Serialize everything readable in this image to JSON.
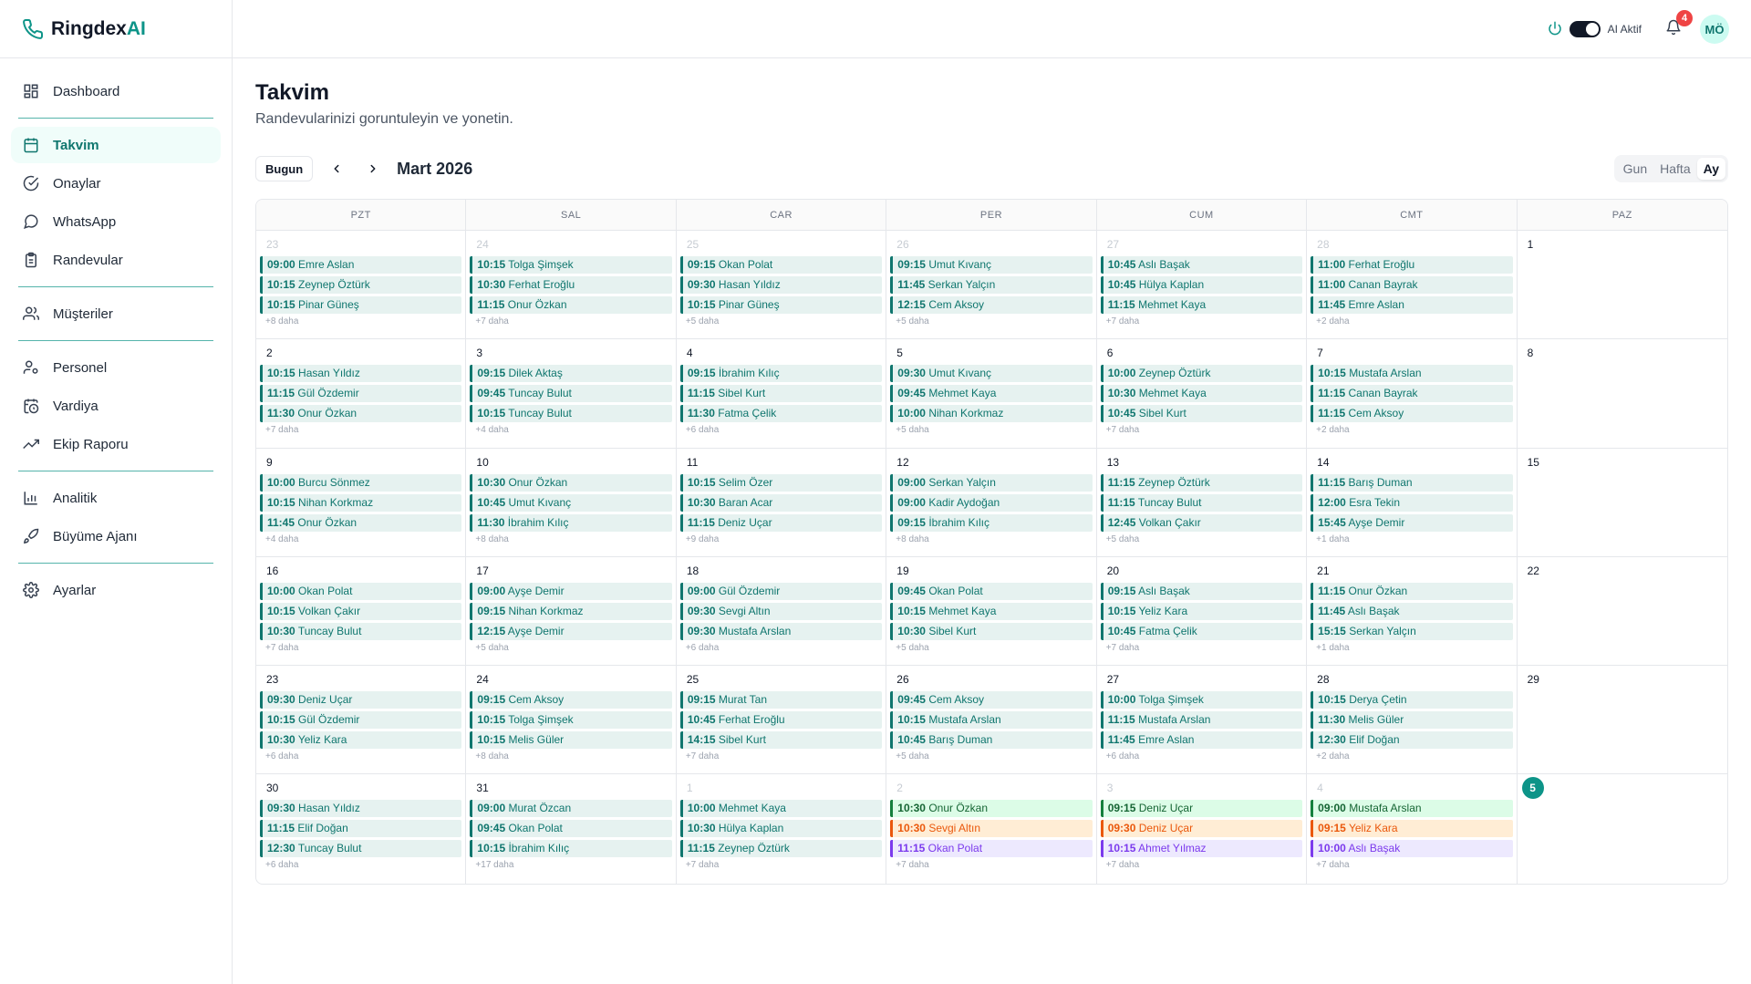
{
  "brand": {
    "name": "Ringdex",
    "accent": "AI"
  },
  "sidebar": {
    "items": [
      {
        "label": "Dashboard",
        "icon": "dashboard-icon",
        "active": false
      },
      {
        "sep": true
      },
      {
        "label": "Takvim",
        "icon": "calendar-icon",
        "active": true
      },
      {
        "label": "Onaylar",
        "icon": "check-circle-icon",
        "active": false
      },
      {
        "label": "WhatsApp",
        "icon": "message-icon",
        "active": false
      },
      {
        "label": "Randevular",
        "icon": "clipboard-icon",
        "active": false
      },
      {
        "sep": true
      },
      {
        "label": "Müşteriler",
        "icon": "users-icon",
        "active": false
      },
      {
        "sep": true
      },
      {
        "label": "Personel",
        "icon": "user-cog-icon",
        "active": false
      },
      {
        "label": "Vardiya",
        "icon": "calendar-clock-icon",
        "active": false
      },
      {
        "label": "Ekip Raporu",
        "icon": "trending-up-icon",
        "active": false
      },
      {
        "sep": true
      },
      {
        "label": "Analitik",
        "icon": "bar-chart-icon",
        "active": false
      },
      {
        "label": "Büyüme Ajanı",
        "icon": "rocket-icon",
        "active": false
      },
      {
        "sep": true
      },
      {
        "label": "Ayarlar",
        "icon": "gear-icon",
        "active": false
      }
    ]
  },
  "topbar": {
    "ai_label": "AI Aktif",
    "notifications": "4",
    "avatar": "MÖ"
  },
  "page": {
    "title": "Takvim",
    "subtitle": "Randevularinizi goruntuleyin ve yonetin."
  },
  "toolbar": {
    "today": "Bugun",
    "month": "Mart 2026",
    "views": [
      "Gun",
      "Hafta",
      "Ay"
    ],
    "active_view": "Ay"
  },
  "weekdays": [
    "PZT",
    "SAL",
    "CAR",
    "PER",
    "CUM",
    "CMT",
    "PAZ"
  ],
  "colors": {
    "accent": "#0d9488",
    "event_bg": "#e6f2f0",
    "event_text": "#0f766e"
  },
  "days": [
    {
      "d": "23",
      "muted": true,
      "ev": [
        [
          "09:00",
          "Emre Aslan"
        ],
        [
          "10:15",
          "Zeynep Öztürk"
        ],
        [
          "10:15",
          "Pinar Güneş"
        ]
      ],
      "more": "+8 daha"
    },
    {
      "d": "24",
      "muted": true,
      "ev": [
        [
          "10:15",
          "Tolga Şimşek"
        ],
        [
          "10:30",
          "Ferhat Eroğlu"
        ],
        [
          "11:15",
          "Onur Özkan"
        ]
      ],
      "more": "+7 daha"
    },
    {
      "d": "25",
      "muted": true,
      "ev": [
        [
          "09:15",
          "Okan Polat"
        ],
        [
          "09:30",
          "Hasan Yıldız"
        ],
        [
          "10:15",
          "Pinar Güneş"
        ]
      ],
      "more": "+5 daha"
    },
    {
      "d": "26",
      "muted": true,
      "ev": [
        [
          "09:15",
          "Umut Kıvanç"
        ],
        [
          "11:45",
          "Serkan Yalçın"
        ],
        [
          "12:15",
          "Cem Aksoy"
        ]
      ],
      "more": "+5 daha"
    },
    {
      "d": "27",
      "muted": true,
      "ev": [
        [
          "10:45",
          "Aslı Başak"
        ],
        [
          "10:45",
          "Hülya Kaplan"
        ],
        [
          "11:15",
          "Mehmet Kaya"
        ]
      ],
      "more": "+7 daha"
    },
    {
      "d": "28",
      "muted": true,
      "ev": [
        [
          "11:00",
          "Ferhat Eroğlu"
        ],
        [
          "11:00",
          "Canan Bayrak"
        ],
        [
          "11:45",
          "Emre Aslan"
        ]
      ],
      "more": "+2 daha"
    },
    {
      "d": "1",
      "muted": false,
      "ev": [],
      "more": ""
    },
    {
      "d": "2",
      "ev": [
        [
          "10:15",
          "Hasan Yıldız"
        ],
        [
          "11:15",
          "Gül Özdemir"
        ],
        [
          "11:30",
          "Onur Özkan"
        ]
      ],
      "more": "+7 daha"
    },
    {
      "d": "3",
      "ev": [
        [
          "09:15",
          "Dilek Aktaş"
        ],
        [
          "09:45",
          "Tuncay Bulut"
        ],
        [
          "10:15",
          "Tuncay Bulut"
        ]
      ],
      "more": "+4 daha"
    },
    {
      "d": "4",
      "ev": [
        [
          "09:15",
          "İbrahim Kılıç"
        ],
        [
          "11:15",
          "Sibel Kurt"
        ],
        [
          "11:30",
          "Fatma Çelik"
        ]
      ],
      "more": "+6 daha"
    },
    {
      "d": "5",
      "ev": [
        [
          "09:30",
          "Umut Kıvanç"
        ],
        [
          "09:45",
          "Mehmet Kaya"
        ],
        [
          "10:00",
          "Nihan Korkmaz"
        ]
      ],
      "more": "+5 daha"
    },
    {
      "d": "6",
      "ev": [
        [
          "10:00",
          "Zeynep Öztürk"
        ],
        [
          "10:30",
          "Mehmet Kaya"
        ],
        [
          "10:45",
          "Sibel Kurt"
        ]
      ],
      "more": "+7 daha"
    },
    {
      "d": "7",
      "ev": [
        [
          "10:15",
          "Mustafa Arslan"
        ],
        [
          "11:15",
          "Canan Bayrak"
        ],
        [
          "11:15",
          "Cem Aksoy"
        ]
      ],
      "more": "+2 daha"
    },
    {
      "d": "8",
      "ev": [],
      "more": ""
    },
    {
      "d": "9",
      "ev": [
        [
          "10:00",
          "Burcu Sönmez"
        ],
        [
          "10:15",
          "Nihan Korkmaz"
        ],
        [
          "11:45",
          "Onur Özkan"
        ]
      ],
      "more": "+4 daha"
    },
    {
      "d": "10",
      "ev": [
        [
          "10:30",
          "Onur Özkan"
        ],
        [
          "10:45",
          "Umut Kıvanç"
        ],
        [
          "11:30",
          "İbrahim Kılıç"
        ]
      ],
      "more": "+8 daha"
    },
    {
      "d": "11",
      "ev": [
        [
          "10:15",
          "Selim Özer"
        ],
        [
          "10:30",
          "Baran Acar"
        ],
        [
          "11:15",
          "Deniz Uçar"
        ]
      ],
      "more": "+9 daha"
    },
    {
      "d": "12",
      "ev": [
        [
          "09:00",
          "Serkan Yalçın"
        ],
        [
          "09:00",
          "Kadir Aydoğan"
        ],
        [
          "09:15",
          "İbrahim Kılıç"
        ]
      ],
      "more": "+8 daha"
    },
    {
      "d": "13",
      "ev": [
        [
          "11:15",
          "Zeynep Öztürk"
        ],
        [
          "11:15",
          "Tuncay Bulut"
        ],
        [
          "12:45",
          "Volkan Çakır"
        ]
      ],
      "more": "+5 daha"
    },
    {
      "d": "14",
      "ev": [
        [
          "11:15",
          "Barış Duman"
        ],
        [
          "12:00",
          "Esra Tekin"
        ],
        [
          "15:45",
          "Ayşe Demir"
        ]
      ],
      "more": "+1 daha"
    },
    {
      "d": "15",
      "ev": [],
      "more": ""
    },
    {
      "d": "16",
      "ev": [
        [
          "10:00",
          "Okan Polat"
        ],
        [
          "10:15",
          "Volkan Çakır"
        ],
        [
          "10:30",
          "Tuncay Bulut"
        ]
      ],
      "more": "+7 daha"
    },
    {
      "d": "17",
      "ev": [
        [
          "09:00",
          "Ayşe Demir"
        ],
        [
          "09:15",
          "Nihan Korkmaz"
        ],
        [
          "12:15",
          "Ayşe Demir"
        ]
      ],
      "more": "+5 daha"
    },
    {
      "d": "18",
      "ev": [
        [
          "09:00",
          "Gül Özdemir"
        ],
        [
          "09:30",
          "Sevgi Altın"
        ],
        [
          "09:30",
          "Mustafa Arslan"
        ]
      ],
      "more": "+6 daha"
    },
    {
      "d": "19",
      "ev": [
        [
          "09:45",
          "Okan Polat"
        ],
        [
          "10:15",
          "Mehmet Kaya"
        ],
        [
          "10:30",
          "Sibel Kurt"
        ]
      ],
      "more": "+5 daha"
    },
    {
      "d": "20",
      "ev": [
        [
          "09:15",
          "Aslı Başak"
        ],
        [
          "10:15",
          "Yeliz Kara"
        ],
        [
          "10:45",
          "Fatma Çelik"
        ]
      ],
      "more": "+7 daha"
    },
    {
      "d": "21",
      "ev": [
        [
          "11:15",
          "Onur Özkan"
        ],
        [
          "11:45",
          "Aslı Başak"
        ],
        [
          "15:15",
          "Serkan Yalçın"
        ]
      ],
      "more": "+1 daha"
    },
    {
      "d": "22",
      "ev": [],
      "more": ""
    },
    {
      "d": "23",
      "ev": [
        [
          "09:30",
          "Deniz Uçar"
        ],
        [
          "10:15",
          "Gül Özdemir"
        ],
        [
          "10:30",
          "Yeliz Kara"
        ]
      ],
      "more": "+6 daha"
    },
    {
      "d": "24",
      "ev": [
        [
          "09:15",
          "Cem Aksoy"
        ],
        [
          "10:15",
          "Tolga Şimşek"
        ],
        [
          "10:15",
          "Melis Güler"
        ]
      ],
      "more": "+8 daha"
    },
    {
      "d": "25",
      "ev": [
        [
          "09:15",
          "Murat Tan"
        ],
        [
          "10:45",
          "Ferhat Eroğlu"
        ],
        [
          "14:15",
          "Sibel Kurt"
        ]
      ],
      "more": "+7 daha"
    },
    {
      "d": "26",
      "ev": [
        [
          "09:45",
          "Cem Aksoy"
        ],
        [
          "10:15",
          "Mustafa Arslan"
        ],
        [
          "10:45",
          "Barış Duman"
        ]
      ],
      "more": "+5 daha"
    },
    {
      "d": "27",
      "ev": [
        [
          "10:00",
          "Tolga Şimşek"
        ],
        [
          "11:15",
          "Mustafa Arslan"
        ],
        [
          "11:45",
          "Emre Aslan"
        ]
      ],
      "more": "+6 daha"
    },
    {
      "d": "28",
      "ev": [
        [
          "10:15",
          "Derya Çetin"
        ],
        [
          "11:30",
          "Melis Güler"
        ],
        [
          "12:30",
          "Elif Doğan"
        ]
      ],
      "more": "+2 daha"
    },
    {
      "d": "29",
      "ev": [],
      "more": ""
    },
    {
      "d": "30",
      "ev": [
        [
          "09:30",
          "Hasan Yıldız"
        ],
        [
          "11:15",
          "Elif Doğan"
        ],
        [
          "12:30",
          "Tuncay Bulut"
        ]
      ],
      "more": "+6 daha"
    },
    {
      "d": "31",
      "ev": [
        [
          "09:00",
          "Murat Özcan"
        ],
        [
          "09:45",
          "Okan Polat"
        ],
        [
          "10:15",
          "İbrahim Kılıç"
        ]
      ],
      "more": "+17 daha"
    },
    {
      "d": "1",
      "muted": true,
      "ev": [
        [
          "10:00",
          "Mehmet Kaya"
        ],
        [
          "10:30",
          "Hülya Kaplan"
        ],
        [
          "11:15",
          "Zeynep Öztürk"
        ]
      ],
      "more": "+7 daha"
    },
    {
      "d": "2",
      "muted": true,
      "ev": [
        [
          "10:30",
          "Onur Özkan",
          "green"
        ],
        [
          "10:30",
          "Sevgi Altın",
          "orange"
        ],
        [
          "11:15",
          "Okan Polat",
          "purple"
        ]
      ],
      "more": "+7 daha"
    },
    {
      "d": "3",
      "muted": true,
      "ev": [
        [
          "09:15",
          "Deniz Uçar",
          "green"
        ],
        [
          "09:30",
          "Deniz Uçar",
          "orange"
        ],
        [
          "10:15",
          "Ahmet Yılmaz",
          "purple"
        ]
      ],
      "more": "+7 daha"
    },
    {
      "d": "4",
      "muted": true,
      "ev": [
        [
          "09:00",
          "Mustafa Arslan",
          "green"
        ],
        [
          "09:15",
          "Yeliz Kara",
          "orange"
        ],
        [
          "10:00",
          "Aslı Başak",
          "purple"
        ]
      ],
      "more": "+7 daha"
    },
    {
      "d": "5",
      "today": true,
      "ev": [],
      "more": ""
    }
  ]
}
